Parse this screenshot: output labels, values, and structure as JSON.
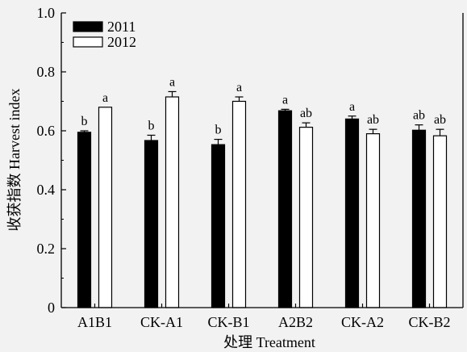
{
  "chart_data": {
    "type": "bar",
    "xlabel": "处理 Treatment",
    "ylabel": "收获指数 Harvest index",
    "ylim": [
      0,
      1.0
    ],
    "yticks": [
      "0",
      "0.2",
      "0.4",
      "0.6",
      "0.8",
      "1.0"
    ],
    "ytick_values": [
      0,
      0.2,
      0.4,
      0.6,
      0.8,
      1.0
    ],
    "categories": [
      "A1B1",
      "CK-A1",
      "CK-B1",
      "A2B2",
      "CK-A2",
      "CK-B2"
    ],
    "legend_position": "top-left",
    "series": [
      {
        "name": "2011",
        "color": "#000000",
        "values": [
          0.595,
          0.567,
          0.553,
          0.668,
          0.64,
          0.602
        ],
        "errors": [
          0.005,
          0.018,
          0.018,
          0.005,
          0.01,
          0.018
        ],
        "labels": [
          "b",
          "b",
          "b",
          "a",
          "a",
          "ab"
        ]
      },
      {
        "name": "2012",
        "color": "#ffffff",
        "values": [
          0.68,
          0.715,
          0.7,
          0.612,
          0.59,
          0.583
        ],
        "errors": [
          0.0,
          0.018,
          0.015,
          0.015,
          0.015,
          0.022
        ],
        "labels": [
          "a",
          "a",
          "a",
          "ab",
          "ab",
          "ab"
        ]
      }
    ]
  }
}
